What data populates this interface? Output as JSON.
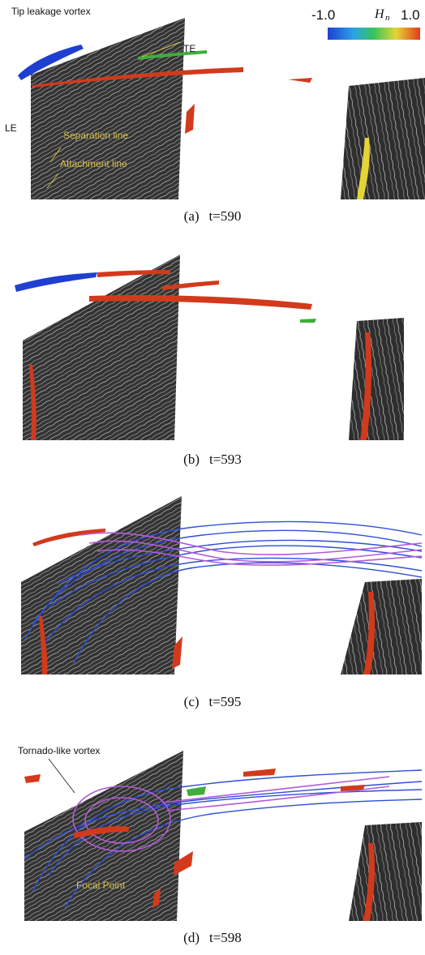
{
  "colorbar": {
    "min_label": "-1.0",
    "symbol": "H",
    "subscript": "n",
    "max_label": "1.0",
    "colors": [
      "#1f3fd1",
      "#2aa3e6",
      "#38c45a",
      "#e4d435",
      "#e23a1c"
    ]
  },
  "panels": [
    {
      "letter": "(a)",
      "time": "t=590",
      "annotations": {
        "tip_leakage_vortex": "Tip leakage vortex",
        "te": "TE",
        "le": "LE",
        "separation_line": "Separation line",
        "attachment_line": "Attachment line"
      }
    },
    {
      "letter": "(b)",
      "time": "t=593"
    },
    {
      "letter": "(c)",
      "time": "t=595"
    },
    {
      "letter": "(d)",
      "time": "t=598",
      "annotations": {
        "tornado_vortex": "Tornado-like vortex",
        "focal_point": "Focal Point"
      }
    }
  ],
  "colors": {
    "blade": "#3a3a3a",
    "streak": "#c8c8c8",
    "streamline_blue": "#2f4fd6",
    "streamline_magenta": "#b45ad8",
    "vortex_red": "#d23a1c",
    "vortex_green": "#3fae3a",
    "annotation_yellow": "#d9c24a"
  }
}
